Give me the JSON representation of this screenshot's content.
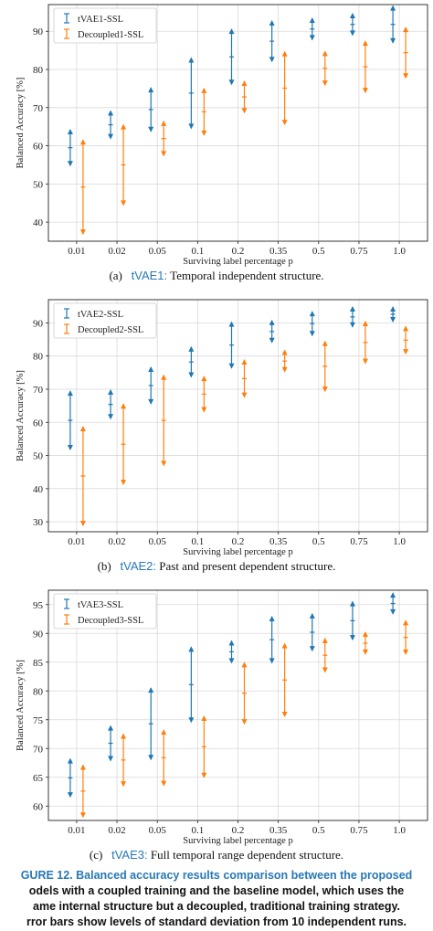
{
  "colors": {
    "series1": "#1f77b4",
    "series2": "#ff7f0e",
    "grid": "#d9d9d9",
    "accent": "#2878b5"
  },
  "chart_data": [
    {
      "type": "errorbar",
      "xlabel": "Surviving label percentage p",
      "ylabel": "Balanced Accuracy [%]",
      "categories": [
        "0.01",
        "0.02",
        "0.05",
        "0.1",
        "0.2",
        "0.35",
        "0.5",
        "0.75",
        "1.0"
      ],
      "ylim": [
        35,
        97
      ],
      "yticks": [
        40,
        50,
        60,
        70,
        80,
        90
      ],
      "grid": true,
      "legend_position": "top-left",
      "series": [
        {
          "name": "tVAE1-SSL",
          "color": "#1f77b4",
          "mean": [
            59.5,
            65.5,
            69.5,
            73.8,
            83.3,
            87.4,
            90.6,
            91.8,
            91.8
          ],
          "std": [
            4.7,
            3.6,
            5.7,
            9.2,
            7.2,
            5.3,
            2.8,
            2.8,
            4.8
          ]
        },
        {
          "name": "Decoupled1-SSL",
          "color": "#ff7f0e",
          "mean": [
            49.2,
            55.0,
            61.9,
            68.9,
            72.8,
            75.1,
            80.3,
            80.7,
            84.4
          ],
          "std": [
            12.3,
            10.5,
            4.5,
            6.1,
            4.1,
            9.5,
            4.4,
            6.7,
            6.6
          ]
        }
      ]
    },
    {
      "type": "errorbar",
      "xlabel": "Surviving label percentage p",
      "ylabel": "Balanced Accuracy [%]",
      "categories": [
        "0.01",
        "0.02",
        "0.05",
        "0.1",
        "0.2",
        "0.35",
        "0.5",
        "0.75",
        "1.0"
      ],
      "ylim": [
        27,
        97
      ],
      "yticks": [
        30,
        40,
        50,
        60,
        70,
        80,
        90
      ],
      "grid": true,
      "legend_position": "top-left",
      "series": [
        {
          "name": "tVAE2-SSL",
          "color": "#1f77b4",
          "mean": [
            60.6,
            65.4,
            71.1,
            78.2,
            83.3,
            87.4,
            89.8,
            91.8,
            92.6
          ],
          "std": [
            8.8,
            4.3,
            5.5,
            4.5,
            6.9,
            3.3,
            3.6,
            3.0,
            2.2
          ]
        },
        {
          "name": "Decoupled2-SSL",
          "color": "#ff7f0e",
          "mean": [
            43.8,
            53.4,
            60.6,
            68.5,
            73.2,
            78.5,
            76.9,
            84.1,
            84.8
          ],
          "std": [
            14.9,
            12.1,
            13.6,
            5.3,
            5.6,
            3.2,
            7.5,
            6.3,
            4.1
          ]
        }
      ]
    },
    {
      "type": "errorbar",
      "xlabel": "Surviving label percentage p",
      "ylabel": "Balanced Accuracy [%]",
      "categories": [
        "0.01",
        "0.02",
        "0.05",
        "0.1",
        "0.2",
        "0.35",
        "0.5",
        "0.75",
        "1.0"
      ],
      "ylim": [
        57.5,
        97.5
      ],
      "yticks": [
        60,
        65,
        70,
        75,
        80,
        85,
        90,
        95
      ],
      "grid": true,
      "legend_position": "top-left",
      "series": [
        {
          "name": "tVAE3-SSL",
          "color": "#1f77b4",
          "mean": [
            64.9,
            70.9,
            74.3,
            81.1,
            86.8,
            88.9,
            90.2,
            92.2,
            95.2
          ],
          "std": [
            3.3,
            3.0,
            6.2,
            6.5,
            1.9,
            4.0,
            3.2,
            3.3,
            1.8
          ]
        },
        {
          "name": "Decoupled3-SSL",
          "color": "#ff7f0e",
          "mean": [
            62.6,
            68.0,
            68.4,
            70.3,
            79.6,
            81.9,
            86.2,
            88.3,
            89.3
          ],
          "std": [
            4.5,
            4.5,
            4.8,
            5.3,
            5.3,
            6.3,
            2.9,
            1.9,
            2.9
          ]
        }
      ]
    }
  ],
  "captions": [
    {
      "label": "(a)",
      "model": "tVAE1:",
      "text": "Temporal independent structure."
    },
    {
      "label": "(b)",
      "model": "tVAE2:",
      "text": "Past and present dependent structure."
    },
    {
      "label": "(c)",
      "model": "tVAE3:",
      "text": "Full temporal range dependent structure."
    }
  ],
  "figure_caption": {
    "lines": [
      "GURE 12. Balanced accuracy results comparison between the proposed",
      "odels with a coupled training and the baseline model, which uses the",
      "ame internal structure but a decoupled, traditional training strategy.",
      "rror bars show levels of standard deviation from 10 independent runs."
    ]
  }
}
